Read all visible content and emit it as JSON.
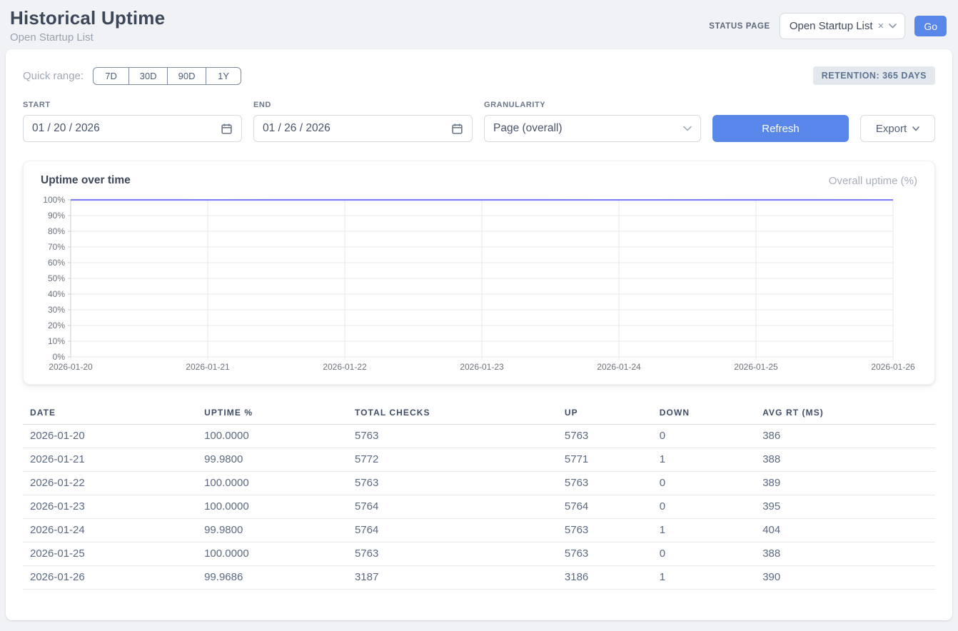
{
  "header": {
    "title": "Historical Uptime",
    "subtitle": "Open Startup List",
    "status_page_label": "STATUS PAGE",
    "status_page_value": "Open Startup List",
    "clear_icon": "×",
    "go_label": "Go"
  },
  "filters": {
    "quick_range_label": "Quick range:",
    "quick_ranges": [
      "7D",
      "30D",
      "90D",
      "1Y"
    ],
    "retention_badge": "RETENTION: 365 DAYS",
    "start_label": "START",
    "start_value": "01/20/2026",
    "end_label": "END",
    "end_value": "01/26/2026",
    "granularity_label": "GRANULARITY",
    "granularity_value": "Page (overall)",
    "refresh_label": "Refresh",
    "export_label": "Export"
  },
  "chart": {
    "title": "Uptime over time",
    "legend": "Overall uptime (%)"
  },
  "chart_data": {
    "type": "line",
    "x": [
      "2026-01-20",
      "2026-01-21",
      "2026-01-22",
      "2026-01-23",
      "2026-01-24",
      "2026-01-25",
      "2026-01-26"
    ],
    "series": [
      {
        "name": "Overall uptime (%)",
        "values": [
          100,
          99.98,
          100,
          100,
          99.98,
          100,
          99.9686
        ]
      }
    ],
    "ylim": [
      0,
      100
    ],
    "ytick_step": 10,
    "ytick_suffix": "%",
    "grid": true,
    "legend_position": "top-right",
    "line_color": "#7c80f2",
    "grid_color": "#e8e9ec",
    "axis_color": "#c8ccd3",
    "tick_label_color": "#6c727c"
  },
  "table": {
    "columns": [
      "DATE",
      "UPTIME %",
      "TOTAL CHECKS",
      "UP",
      "DOWN",
      "AVG RT (MS)"
    ],
    "rows": [
      [
        "2026-01-20",
        "100.0000",
        "5763",
        "5763",
        "0",
        "386"
      ],
      [
        "2026-01-21",
        "99.9800",
        "5772",
        "5771",
        "1",
        "388"
      ],
      [
        "2026-01-22",
        "100.0000",
        "5763",
        "5763",
        "0",
        "389"
      ],
      [
        "2026-01-23",
        "100.0000",
        "5764",
        "5764",
        "0",
        "395"
      ],
      [
        "2026-01-24",
        "99.9800",
        "5764",
        "5763",
        "1",
        "404"
      ],
      [
        "2026-01-25",
        "100.0000",
        "5763",
        "5763",
        "0",
        "388"
      ],
      [
        "2026-01-26",
        "99.9686",
        "3187",
        "3186",
        "1",
        "390"
      ]
    ]
  }
}
